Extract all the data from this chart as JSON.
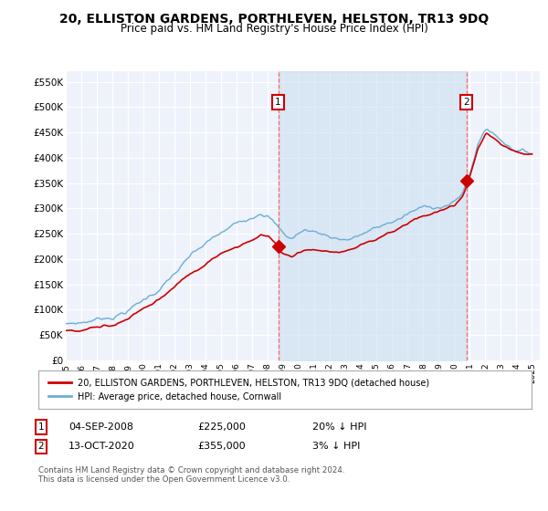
{
  "title": "20, ELLISTON GARDENS, PORTHLEVEN, HELSTON, TR13 9DQ",
  "subtitle": "Price paid vs. HM Land Registry's House Price Index (HPI)",
  "title_fontsize": 10,
  "subtitle_fontsize": 8.5,
  "ylabel_ticks": [
    "£0",
    "£50K",
    "£100K",
    "£150K",
    "£200K",
    "£250K",
    "£300K",
    "£350K",
    "£400K",
    "£450K",
    "£500K",
    "£550K"
  ],
  "ytick_values": [
    0,
    50000,
    100000,
    150000,
    200000,
    250000,
    300000,
    350000,
    400000,
    450000,
    500000,
    550000
  ],
  "ylim": [
    0,
    570000
  ],
  "xlim_start": 1995.0,
  "xlim_end": 2025.5,
  "hpi_color": "#6baed6",
  "hpi_fill_color": "#c6dbef",
  "price_color": "#cc0000",
  "marker_color": "#cc0000",
  "vline_color": "#ff6666",
  "background_color": "#ffffff",
  "plot_bg_color": "#eef2fa",
  "grid_color": "#cccccc",
  "legend_label_1": "20, ELLISTON GARDENS, PORTHLEVEN, HELSTON, TR13 9DQ (detached house)",
  "legend_label_2": "HPI: Average price, detached house, Cornwall",
  "annotation_1_label": "1",
  "annotation_1_date": "04-SEP-2008",
  "annotation_1_price": "£225,000",
  "annotation_1_pct": "20% ↓ HPI",
  "annotation_2_label": "2",
  "annotation_2_date": "13-OCT-2020",
  "annotation_2_price": "£355,000",
  "annotation_2_pct": "3% ↓ HPI",
  "transaction_1_x": 2008.67,
  "transaction_1_y": 225000,
  "transaction_2_x": 2020.79,
  "transaction_2_y": 355000,
  "footnote": "Contains HM Land Registry data © Crown copyright and database right 2024.\nThis data is licensed under the Open Government Licence v3.0.",
  "xtick_years": [
    1995,
    1996,
    1997,
    1998,
    1999,
    2000,
    2001,
    2002,
    2003,
    2004,
    2005,
    2006,
    2007,
    2008,
    2009,
    2010,
    2011,
    2012,
    2013,
    2014,
    2015,
    2016,
    2017,
    2018,
    2019,
    2020,
    2021,
    2022,
    2023,
    2024,
    2025
  ]
}
